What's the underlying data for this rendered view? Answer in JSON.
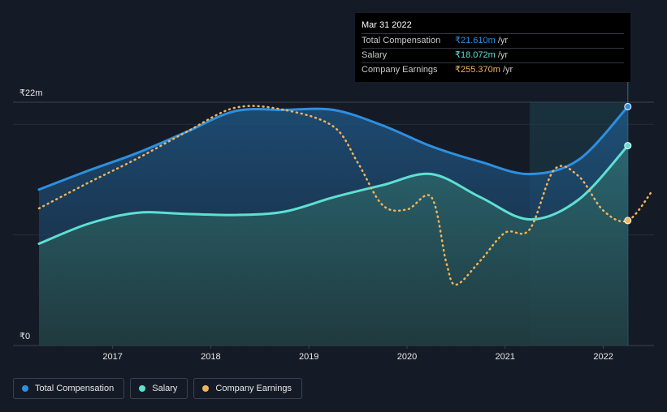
{
  "chart_data": {
    "type": "area",
    "y_unit_prefix": "₹",
    "ylim": [
      0,
      22
    ],
    "y_axis_labels": [
      "₹22m",
      "₹0"
    ],
    "x_ticks": [
      {
        "label": "2017",
        "x": 2017.0
      },
      {
        "label": "2018",
        "x": 2018.0
      },
      {
        "label": "2019",
        "x": 2019.0
      },
      {
        "label": "2020",
        "x": 2020.0
      },
      {
        "label": "2021",
        "x": 2021.0
      },
      {
        "label": "2022",
        "x": 2022.0
      }
    ],
    "highlight_range": [
      2021.25,
      2022.25
    ],
    "series": [
      {
        "name": "Total Compensation",
        "color": "#2e8fe0",
        "style": "area-line",
        "points": [
          [
            2016.25,
            14.1
          ],
          [
            2016.75,
            15.8
          ],
          [
            2017.25,
            17.4
          ],
          [
            2017.75,
            19.3
          ],
          [
            2018.25,
            21.2
          ],
          [
            2018.75,
            21.3
          ],
          [
            2019.25,
            21.3
          ],
          [
            2019.75,
            19.9
          ],
          [
            2020.25,
            18.0
          ],
          [
            2020.75,
            16.6
          ],
          [
            2021.25,
            15.5
          ],
          [
            2021.75,
            16.8
          ],
          [
            2022.25,
            21.6
          ]
        ]
      },
      {
        "name": "Salary",
        "color": "#5ee0d2",
        "style": "area-line",
        "points": [
          [
            2016.25,
            9.2
          ],
          [
            2016.75,
            11.0
          ],
          [
            2017.25,
            12.0
          ],
          [
            2017.75,
            11.9
          ],
          [
            2018.25,
            11.8
          ],
          [
            2018.75,
            12.1
          ],
          [
            2019.25,
            13.4
          ],
          [
            2019.75,
            14.5
          ],
          [
            2020.25,
            15.5
          ],
          [
            2020.75,
            13.4
          ],
          [
            2021.25,
            11.4
          ],
          [
            2021.75,
            13.2
          ],
          [
            2022.25,
            18.07
          ]
        ]
      },
      {
        "name": "Company Earnings",
        "color": "#f0b45a",
        "style": "dotted-line",
        "points": [
          [
            2016.25,
            12.4
          ],
          [
            2016.75,
            14.7
          ],
          [
            2017.25,
            16.9
          ],
          [
            2017.75,
            19.3
          ],
          [
            2018.25,
            21.5
          ],
          [
            2018.75,
            21.3
          ],
          [
            2019.25,
            19.8
          ],
          [
            2019.5,
            16.5
          ],
          [
            2019.75,
            12.7
          ],
          [
            2020.0,
            12.3
          ],
          [
            2020.25,
            13.4
          ],
          [
            2020.4,
            7.5
          ],
          [
            2020.5,
            5.5
          ],
          [
            2020.75,
            7.7
          ],
          [
            2021.0,
            10.2
          ],
          [
            2021.25,
            10.5
          ],
          [
            2021.5,
            15.9
          ],
          [
            2021.75,
            15.3
          ],
          [
            2022.0,
            12.2
          ],
          [
            2022.25,
            11.3
          ],
          [
            2022.5,
            14.0
          ]
        ]
      }
    ],
    "tooltip": {
      "date": "Mar 31 2022",
      "rows": [
        {
          "name": "Total Compensation",
          "value": "₹21.610m",
          "unit": "/yr",
          "color": "#2e8fe0"
        },
        {
          "name": "Salary",
          "value": "₹18.072m",
          "unit": "/yr",
          "color": "#5ee0d2"
        },
        {
          "name": "Company Earnings",
          "value": "₹255.370m",
          "unit": "/yr",
          "color": "#f0b45a"
        }
      ]
    },
    "legend": [
      {
        "label": "Total Compensation",
        "color": "#2e8fe0"
      },
      {
        "label": "Salary",
        "color": "#5ee0d2"
      },
      {
        "label": "Company Earnings",
        "color": "#f0b45a"
      }
    ]
  }
}
